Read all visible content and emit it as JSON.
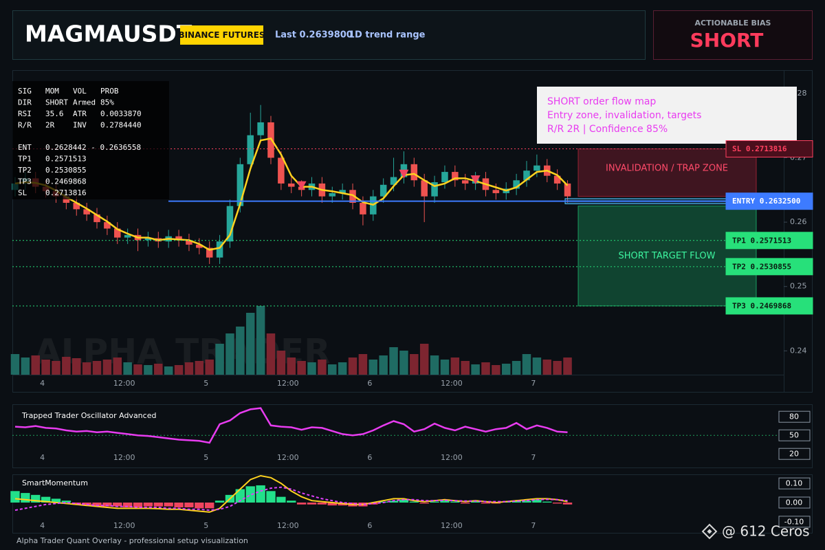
{
  "header": {
    "symbol": "MAGMAUSDT",
    "exchange": "BINANCE FUTURES",
    "last": "Last 0.2639800",
    "range": "1D trend range"
  },
  "bias": {
    "label": "ACTIONABLE BIAS",
    "value": "SHORT"
  },
  "info_table": {
    "top": [
      [
        "SIG",
        "MOM",
        "VOL",
        "PROB"
      ],
      [
        "DIR",
        "SHORT",
        "Armed",
        "85%"
      ],
      [
        "RSI",
        "35.6",
        "ATR",
        "0.0033870"
      ],
      [
        "R/R",
        "2R",
        "INV",
        "0.2784440"
      ]
    ],
    "levels": [
      [
        "ENT",
        "0.2628442 - 0.2636558"
      ],
      [
        "TP1",
        "0.2571513"
      ],
      [
        "TP2",
        "0.2530855"
      ],
      [
        "TP3",
        "0.2469868"
      ],
      [
        "SL",
        "0.2713816"
      ]
    ]
  },
  "callout": [
    "SHORT order flow map",
    "Entry zone, invalidation, targets",
    "R/R 2R | Confidence 85%"
  ],
  "watermark": "ALPHA TRADER",
  "footer": "Alpha Trader Quant Overlay - professional setup visualization",
  "credit": "@ 612 Ceros",
  "chart_data": [
    {
      "type": "candlestick",
      "xlim": [
        -4.4,
        108.7
      ],
      "xticks": [
        {
          "value": 0,
          "label": "4"
        },
        {
          "value": 12,
          "label": "12:00"
        },
        {
          "value": 24,
          "label": "5"
        },
        {
          "value": 36,
          "label": "12:00"
        },
        {
          "value": 48,
          "label": "6"
        },
        {
          "value": 60,
          "label": "12:00"
        },
        {
          "value": 72,
          "label": "7"
        }
      ],
      "ylim": [
        0.2363,
        0.2834
      ],
      "yticks": [
        0.24,
        0.25,
        0.26,
        0.27,
        0.28
      ],
      "up_color": "#26a69a",
      "down_color": "#ef5350",
      "volume_up_color": "#1f6b63",
      "volume_down_color": "#7d2530",
      "x": [
        -4,
        -2.5,
        -1,
        0.5,
        2,
        3.5,
        5,
        6.5,
        8,
        9.5,
        11,
        12.5,
        14,
        15.5,
        17,
        18.5,
        20,
        21.5,
        23,
        24.5,
        26,
        27.5,
        29,
        30.5,
        32,
        33.5,
        35,
        36.5,
        38,
        39.5,
        41,
        42.5,
        44,
        45.5,
        47,
        48.5,
        50,
        51.5,
        53,
        54.5,
        56,
        57.5,
        59,
        60.5,
        62,
        63.5,
        65,
        66.5,
        68,
        69.5,
        71,
        72.5,
        74,
        75.5,
        77
      ],
      "open": [
        0.265,
        0.266,
        0.2668,
        0.2655,
        0.2648,
        0.264,
        0.263,
        0.262,
        0.2612,
        0.26,
        0.259,
        0.2576,
        0.258,
        0.2572,
        0.2575,
        0.257,
        0.2578,
        0.2572,
        0.2565,
        0.256,
        0.2545,
        0.257,
        0.2625,
        0.269,
        0.2735,
        0.2755,
        0.27,
        0.266,
        0.2655,
        0.265,
        0.266,
        0.264,
        0.2645,
        0.265,
        0.263,
        0.2612,
        0.264,
        0.2658,
        0.267,
        0.269,
        0.2665,
        0.264,
        0.2662,
        0.2678,
        0.2665,
        0.266,
        0.2668,
        0.265,
        0.2645,
        0.2652,
        0.2665,
        0.268,
        0.2688,
        0.2672,
        0.266
      ],
      "high": [
        0.267,
        0.2678,
        0.2678,
        0.2665,
        0.2658,
        0.265,
        0.264,
        0.263,
        0.2622,
        0.261,
        0.26,
        0.259,
        0.259,
        0.2585,
        0.2585,
        0.2588,
        0.2588,
        0.2582,
        0.2575,
        0.257,
        0.258,
        0.2635,
        0.27,
        0.277,
        0.2782,
        0.2765,
        0.271,
        0.267,
        0.2665,
        0.267,
        0.267,
        0.2655,
        0.266,
        0.266,
        0.264,
        0.265,
        0.2668,
        0.27,
        0.271,
        0.27,
        0.2675,
        0.2672,
        0.2688,
        0.2688,
        0.2675,
        0.2678,
        0.2678,
        0.266,
        0.2662,
        0.2675,
        0.2695,
        0.2705,
        0.2698,
        0.2682,
        0.2665
      ],
      "low": [
        0.264,
        0.265,
        0.2645,
        0.2638,
        0.263,
        0.262,
        0.261,
        0.2602,
        0.259,
        0.258,
        0.2566,
        0.2566,
        0.2555,
        0.2562,
        0.256,
        0.256,
        0.2562,
        0.2555,
        0.255,
        0.2535,
        0.2535,
        0.256,
        0.2615,
        0.268,
        0.2725,
        0.269,
        0.265,
        0.2645,
        0.264,
        0.264,
        0.263,
        0.263,
        0.2635,
        0.262,
        0.2595,
        0.2602,
        0.263,
        0.2648,
        0.266,
        0.2655,
        0.26,
        0.263,
        0.2652,
        0.2655,
        0.265,
        0.265,
        0.264,
        0.2635,
        0.2635,
        0.2642,
        0.2655,
        0.267,
        0.2662,
        0.265,
        0.263
      ],
      "close": [
        0.266,
        0.2668,
        0.2655,
        0.2648,
        0.264,
        0.263,
        0.262,
        0.2612,
        0.26,
        0.259,
        0.2576,
        0.258,
        0.2572,
        0.2575,
        0.257,
        0.2578,
        0.2572,
        0.2565,
        0.256,
        0.2545,
        0.257,
        0.2625,
        0.269,
        0.2735,
        0.2755,
        0.27,
        0.266,
        0.2655,
        0.265,
        0.266,
        0.264,
        0.2645,
        0.265,
        0.263,
        0.2612,
        0.264,
        0.2658,
        0.267,
        0.269,
        0.2665,
        0.264,
        0.2662,
        0.2678,
        0.2665,
        0.266,
        0.2668,
        0.265,
        0.2645,
        0.2652,
        0.2665,
        0.268,
        0.2688,
        0.2672,
        0.266,
        0.264
      ],
      "volume": [
        30,
        25,
        28,
        22,
        20,
        26,
        24,
        18,
        20,
        22,
        25,
        18,
        15,
        14,
        16,
        12,
        14,
        18,
        20,
        22,
        45,
        60,
        70,
        90,
        100,
        60,
        35,
        25,
        20,
        18,
        22,
        15,
        18,
        25,
        30,
        22,
        28,
        40,
        35,
        30,
        45,
        28,
        22,
        25,
        20,
        15,
        18,
        14,
        16,
        20,
        30,
        25,
        22,
        20,
        25
      ],
      "ma": {
        "color": "#ffd21f",
        "values": [
          0.266,
          0.2662,
          0.2661,
          0.2657,
          0.2649,
          0.2639,
          0.263,
          0.2621,
          0.2611,
          0.2601,
          0.2589,
          0.2582,
          0.2576,
          0.2576,
          0.2572,
          0.2574,
          0.2573,
          0.2572,
          0.2566,
          0.2557,
          0.256,
          0.258,
          0.2628,
          0.2683,
          0.2727,
          0.273,
          0.2705,
          0.2672,
          0.2655,
          0.2655,
          0.265,
          0.2648,
          0.2645,
          0.2642,
          0.2631,
          0.2627,
          0.2637,
          0.2656,
          0.2673,
          0.2675,
          0.2665,
          0.2656,
          0.266,
          0.2668,
          0.2668,
          0.2664,
          0.2659,
          0.2654,
          0.2649,
          0.2654,
          0.2666,
          0.2678,
          0.268,
          0.2673,
          0.2657
        ]
      },
      "signals_x": [
        38,
        53,
        63.5
      ],
      "signal_color": "#f0455f",
      "levels": [
        {
          "label": "SL 0.2713816",
          "value": 0.2713816,
          "color": "#ff4060",
          "dashed": true
        },
        {
          "label": "ENTRY 0.2632500",
          "value": 0.26325,
          "color": "#3d7bff",
          "dashed": false
        },
        {
          "label": "TP1 0.2571513",
          "value": 0.2571513,
          "color": "#27e07a",
          "dashed": true
        },
        {
          "label": "TP2 0.2530855",
          "value": 0.2530855,
          "color": "#27e07a",
          "dashed": true
        },
        {
          "label": "TP3 0.2469868",
          "value": 0.2469868,
          "color": "#27e07a",
          "dashed": true
        }
      ],
      "entry_zone": [
        0.2628442,
        0.2636558
      ],
      "zones": [
        {
          "label": "INVALIDATION / TRAP ZONE",
          "from": 0.2713816,
          "to": 0.264,
          "color": "#c8283f",
          "text_color": "#ff4a6a"
        },
        {
          "label": "SHORT TARGET FLOW",
          "from": 0.2625,
          "to": 0.2469868,
          "color": "#1fd07a",
          "text_color": "#3df5a0"
        }
      ]
    },
    {
      "type": "line",
      "title": "Trapped Trader Oscillator Advanced",
      "color": "#e83cf0",
      "ylim": [
        -2,
        98
      ],
      "levels": [
        80,
        50,
        20
      ],
      "values": [
        64,
        63,
        65,
        62,
        61,
        58,
        56,
        57,
        55,
        56,
        54,
        52,
        50,
        49,
        47,
        45,
        43,
        42,
        41,
        38,
        68,
        74,
        86,
        92,
        94,
        66,
        64,
        63,
        59,
        63,
        62,
        57,
        52,
        50,
        52,
        58,
        66,
        73,
        68,
        56,
        60,
        69,
        62,
        58,
        64,
        60,
        56,
        60,
        62,
        70,
        60,
        66,
        62,
        56,
        55
      ]
    },
    {
      "type": "bar",
      "title": "SmartMomentum",
      "ylim": [
        -0.14,
        0.14
      ],
      "yticks": [
        {
          "value": 0.1,
          "label": "0.10"
        },
        {
          "value": 0,
          "label": "0.00"
        },
        {
          "value": -0.1,
          "label": "-0.10"
        }
      ],
      "positive_color": "#22e08a",
      "negative_color": "#f0455f",
      "values": [
        0.06,
        0.05,
        0.04,
        0.03,
        0.02,
        0.01,
        -0.01,
        -0.015,
        -0.02,
        -0.02,
        -0.02,
        -0.025,
        -0.025,
        -0.02,
        -0.02,
        -0.02,
        -0.025,
        -0.025,
        -0.03,
        -0.03,
        0.01,
        0.04,
        0.07,
        0.085,
        0.09,
        0.06,
        0.03,
        0.01,
        -0.01,
        -0.01,
        -0.01,
        -0.015,
        -0.015,
        -0.02,
        -0.02,
        -0.01,
        0.005,
        0.01,
        0.015,
        0.005,
        -0.005,
        0.005,
        0.01,
        0.005,
        -0.005,
        0.005,
        -0.005,
        -0.005,
        0.005,
        0.01,
        0.01,
        0.015,
        0.005,
        -0.005,
        -0.01
      ],
      "lines": [
        {
          "color": "#ffd21f",
          "dashed": false,
          "values": [
            0.02,
            0.015,
            0.01,
            0.005,
            0.0,
            -0.005,
            -0.01,
            -0.015,
            -0.02,
            -0.025,
            -0.03,
            -0.03,
            -0.03,
            -0.03,
            -0.032,
            -0.035,
            -0.035,
            -0.04,
            -0.045,
            -0.05,
            -0.03,
            0.02,
            0.07,
            0.12,
            0.14,
            0.13,
            0.1,
            0.06,
            0.03,
            0.01,
            0.005,
            0.0,
            -0.005,
            -0.01,
            -0.01,
            0.0,
            0.01,
            0.02,
            0.02,
            0.01,
            0.005,
            0.01,
            0.015,
            0.01,
            0.005,
            0.01,
            0.005,
            0.0,
            0.005,
            0.01,
            0.015,
            0.02,
            0.02,
            0.015,
            0.005
          ]
        },
        {
          "color": "#e040fb",
          "dashed": true,
          "values": [
            -0.04,
            -0.03,
            -0.02,
            -0.01,
            -0.005,
            0.0,
            -0.005,
            -0.01,
            -0.015,
            -0.015,
            -0.02,
            -0.02,
            -0.025,
            -0.025,
            -0.025,
            -0.03,
            -0.03,
            -0.035,
            -0.035,
            -0.04,
            -0.035,
            -0.02,
            0.01,
            0.04,
            0.06,
            0.075,
            0.08,
            0.07,
            0.05,
            0.035,
            0.02,
            0.01,
            0.0,
            -0.005,
            -0.01,
            -0.005,
            0.0,
            0.01,
            0.015,
            0.015,
            0.01,
            0.01,
            0.012,
            0.01,
            0.008,
            0.008,
            0.005,
            0.005,
            0.005,
            0.008,
            0.01,
            0.015,
            0.017,
            0.015,
            0.01
          ]
        }
      ]
    }
  ]
}
